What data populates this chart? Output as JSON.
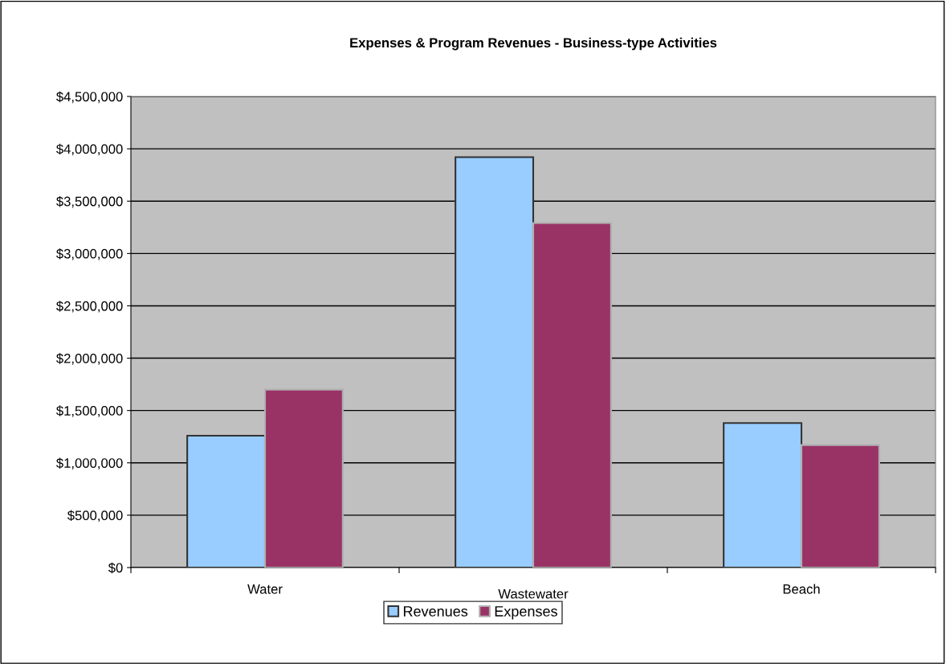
{
  "chart_data": {
    "type": "bar",
    "title": "Expenses & Program Revenues - Business-type Activities",
    "categories": [
      "Water",
      "Wastewater",
      "Beach"
    ],
    "series": [
      {
        "name": "Revenues",
        "color": "#99ccff",
        "values": [
          1260000,
          3920000,
          1380000
        ]
      },
      {
        "name": "Expenses",
        "color": "#993366",
        "values": [
          1700000,
          3290000,
          1170000
        ]
      }
    ],
    "ylim": [
      0,
      4500000
    ],
    "yticks": [
      {
        "value": 0,
        "label": "$0"
      },
      {
        "value": 500000,
        "label": "$500,000"
      },
      {
        "value": 1000000,
        "label": "$1,000,000"
      },
      {
        "value": 1500000,
        "label": "$1,500,000"
      },
      {
        "value": 2000000,
        "label": "$2,000,000"
      },
      {
        "value": 2500000,
        "label": "$2,500,000"
      },
      {
        "value": 3000000,
        "label": "$3,000,000"
      },
      {
        "value": 3500000,
        "label": "$3,500,000"
      },
      {
        "value": 4000000,
        "label": "$4,000,000"
      },
      {
        "value": 4500000,
        "label": "$4,500,000"
      }
    ],
    "grid": "y",
    "legend": "bottom"
  }
}
